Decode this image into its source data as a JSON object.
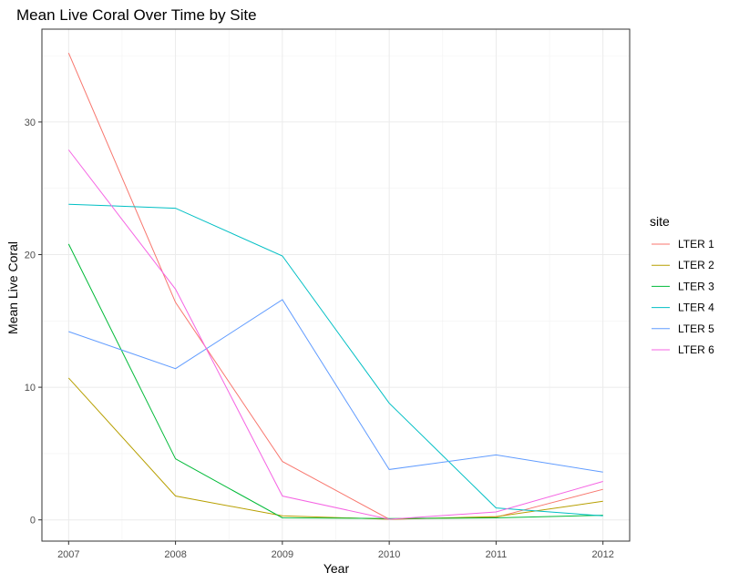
{
  "chart_data": {
    "type": "line",
    "title": "Mean Live Coral Over Time by Site",
    "xlabel": "Year",
    "ylabel": "Mean Live Coral",
    "x": [
      2007,
      2008,
      2009,
      2010,
      2011,
      2012
    ],
    "xlim": [
      2006.75,
      2012.25
    ],
    "ylim": [
      -1.6,
      37.0
    ],
    "yticks": [
      0,
      10,
      20,
      30
    ],
    "grid": true,
    "legend": {
      "title": "site",
      "position": "right"
    },
    "series": [
      {
        "name": "LTER 1",
        "color": "#F8766D",
        "values": [
          35.2,
          16.4,
          4.4,
          0.05,
          0.2,
          2.3
        ]
      },
      {
        "name": "LTER 2",
        "color": "#B79F00",
        "values": [
          10.7,
          1.8,
          0.3,
          0.05,
          0.25,
          1.4
        ]
      },
      {
        "name": "LTER 3",
        "color": "#00BA38",
        "values": [
          20.8,
          4.6,
          0.15,
          0.1,
          0.15,
          0.35
        ]
      },
      {
        "name": "LTER 4",
        "color": "#00BFC4",
        "values": [
          23.8,
          23.5,
          19.9,
          8.8,
          0.9,
          0.3
        ]
      },
      {
        "name": "LTER 5",
        "color": "#619CFF",
        "values": [
          14.2,
          11.4,
          16.6,
          3.8,
          4.9,
          3.6
        ]
      },
      {
        "name": "LTER 6",
        "color": "#F564E3",
        "values": [
          27.9,
          17.4,
          1.8,
          0.05,
          0.6,
          2.9
        ]
      }
    ]
  }
}
